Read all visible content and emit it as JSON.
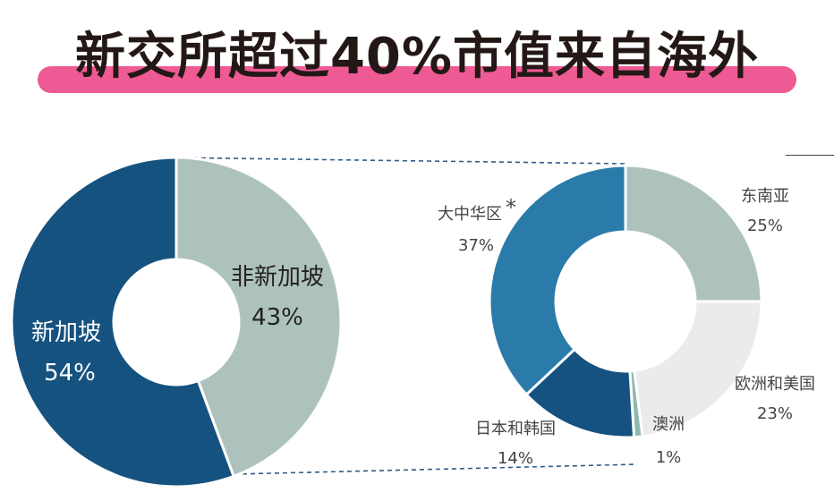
{
  "title": "新交所超过40%市值来自海外",
  "colors": {
    "title_bar": "#EE5A93",
    "singapore": "#15527F",
    "overseas": "#AEC2BD",
    "greater_china": "#2A7BAA",
    "southeast_asia": "#AEC2BD",
    "europe_us": "#ECEAEB",
    "japan_korea": "#15527F",
    "australia": "#8FB8B0",
    "connector": "#2E5D8A"
  },
  "chart_data": [
    {
      "type": "pie",
      "style": "donut",
      "slices": [
        {
          "label": "非新加坡",
          "value": 43,
          "display": "43%"
        },
        {
          "label": "新加坡",
          "value": 54,
          "display": "54%"
        }
      ]
    },
    {
      "type": "pie",
      "style": "donut",
      "slices": [
        {
          "label": "东南亚",
          "value": 25,
          "display": "25%"
        },
        {
          "label": "欧洲和美国",
          "value": 23,
          "display": "23%"
        },
        {
          "label": "澳洲",
          "value": 1,
          "display": "1%"
        },
        {
          "label": "日本和韩国",
          "value": 14,
          "display": "14%"
        },
        {
          "label": "大中华区",
          "value": 37,
          "display": "37%",
          "note": "*"
        }
      ]
    }
  ]
}
